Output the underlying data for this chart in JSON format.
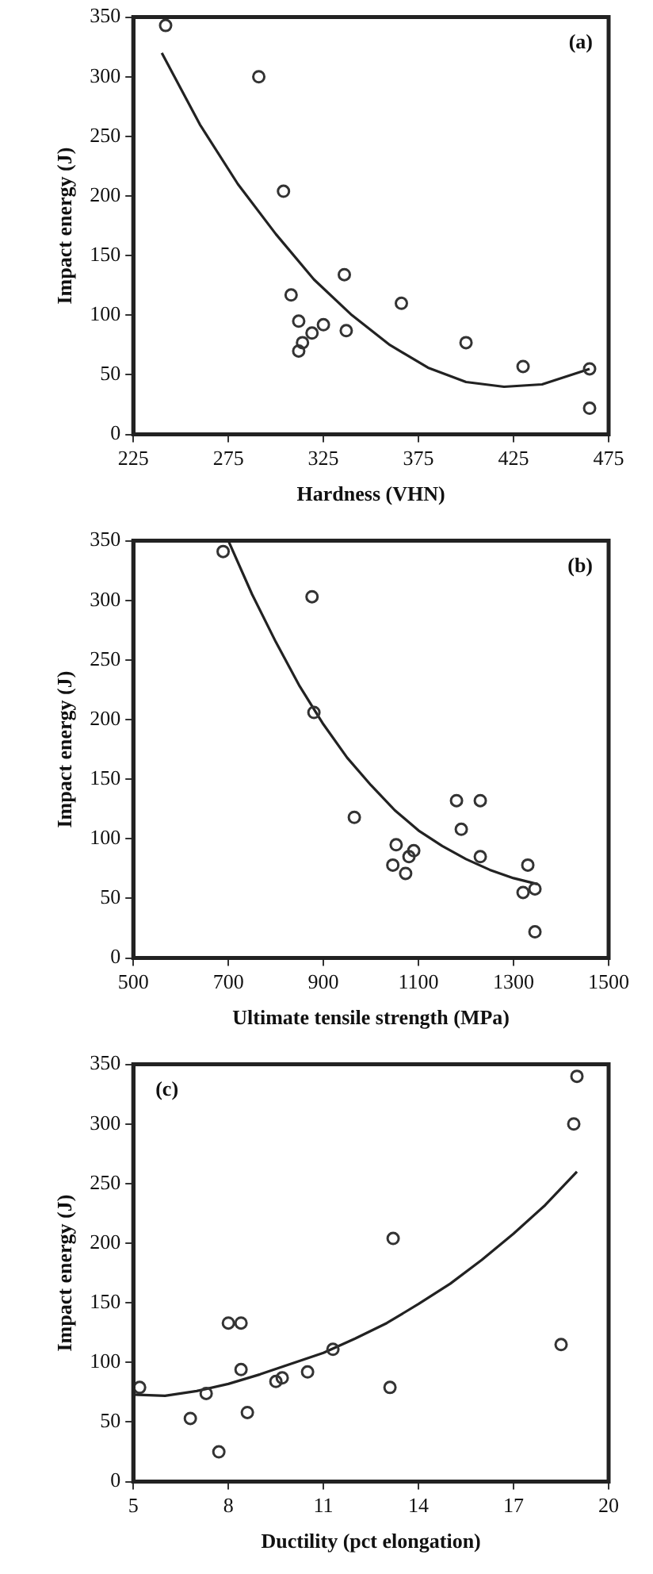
{
  "chart_data": [
    {
      "type": "scatter",
      "xlabel": "Hardness (VHN)",
      "ylabel": "Impact energy (J)",
      "annotations": [
        "(a)"
      ],
      "xlim": [
        225,
        475
      ],
      "xticks": [
        225,
        275,
        325,
        375,
        425,
        475
      ],
      "ylim": [
        0,
        350
      ],
      "yticks": [
        0,
        50,
        100,
        150,
        200,
        250,
        300,
        350
      ],
      "grid": false,
      "legend": false,
      "series": [
        {
          "type": "scatter",
          "color": "#333333",
          "marker": "circle",
          "x": [
            242,
            291,
            304,
            308,
            312,
            314,
            325,
            336,
            337,
            366,
            400,
            430,
            465,
            465,
            312,
            319
          ],
          "values": [
            343,
            300,
            204,
            117,
            95,
            77,
            92,
            134,
            87,
            110,
            77,
            57,
            55,
            22,
            70,
            85
          ]
        },
        {
          "type": "line",
          "color": "#222222",
          "marker": "none",
          "line_style": "solid",
          "x": [
            240,
            260,
            280,
            300,
            320,
            340,
            360,
            380,
            400,
            420,
            440,
            465
          ],
          "values": [
            320,
            260,
            210,
            168,
            130,
            100,
            75,
            56,
            44,
            40,
            42,
            55
          ]
        }
      ]
    },
    {
      "type": "scatter",
      "xlabel": "Ultimate tensile strength (MPa)",
      "ylabel": "Impact energy (J)",
      "annotations": [
        "(b)"
      ],
      "xlim": [
        500,
        1500
      ],
      "xticks": [
        500,
        700,
        900,
        1100,
        1300,
        {
          "value": 1500,
          "label": "1500"
        }
      ],
      "ylim": [
        0,
        350
      ],
      "yticks": [
        0,
        50,
        100,
        150,
        200,
        250,
        300,
        350
      ],
      "grid": false,
      "legend": false,
      "series": [
        {
          "type": "scatter",
          "color": "#333333",
          "marker": "circle",
          "x": [
            689,
            876,
            880,
            965,
            1053,
            1046,
            1073,
            1080,
            1090,
            1180,
            1230,
            1190,
            1230,
            1320,
            1330,
            1345,
            1345
          ],
          "values": [
            341,
            303,
            206,
            118,
            95,
            78,
            71,
            85,
            90,
            132,
            132,
            108,
            85,
            55,
            78,
            58,
            22
          ]
        },
        {
          "type": "line",
          "color": "#222222",
          "marker": "none",
          "line_style": "solid",
          "x": [
            700,
            750,
            800,
            850,
            900,
            950,
            1000,
            1050,
            1100,
            1150,
            1200,
            1250,
            1300,
            1350
          ],
          "values": [
            350,
            305,
            265,
            228,
            196,
            168,
            145,
            124,
            107,
            94,
            83,
            74,
            67,
            62
          ]
        }
      ]
    },
    {
      "type": "scatter",
      "xlabel": "Ductility (pct elongation)",
      "ylabel": "Impact energy (J)",
      "annotations": [
        "(c)"
      ],
      "xlim": [
        5,
        20
      ],
      "xticks": [
        5,
        8,
        11,
        14,
        17,
        20
      ],
      "ylim": [
        0,
        350
      ],
      "yticks": [
        0,
        50,
        100,
        150,
        200,
        250,
        300,
        350
      ],
      "grid": false,
      "legend": false,
      "series": [
        {
          "type": "scatter",
          "color": "#333333",
          "marker": "circle",
          "x": [
            5.2,
            6.8,
            7.3,
            7.7,
            8.0,
            8.4,
            8.4,
            8.6,
            9.5,
            9.7,
            10.5,
            11.3,
            13.2,
            13.1,
            18.5,
            18.9,
            19.0
          ],
          "values": [
            79,
            53,
            74,
            25,
            133,
            133,
            94,
            58,
            84,
            87,
            92,
            111,
            204,
            79,
            115,
            300,
            340
          ]
        },
        {
          "type": "line",
          "color": "#222222",
          "marker": "none",
          "line_style": "solid",
          "x": [
            5,
            6,
            7,
            8,
            9,
            10,
            11,
            12,
            13,
            14,
            15,
            16,
            17,
            18,
            19
          ],
          "values": [
            73,
            72,
            76,
            82,
            90,
            99,
            108,
            120,
            133,
            149,
            166,
            186,
            208,
            232,
            260
          ]
        }
      ]
    }
  ]
}
